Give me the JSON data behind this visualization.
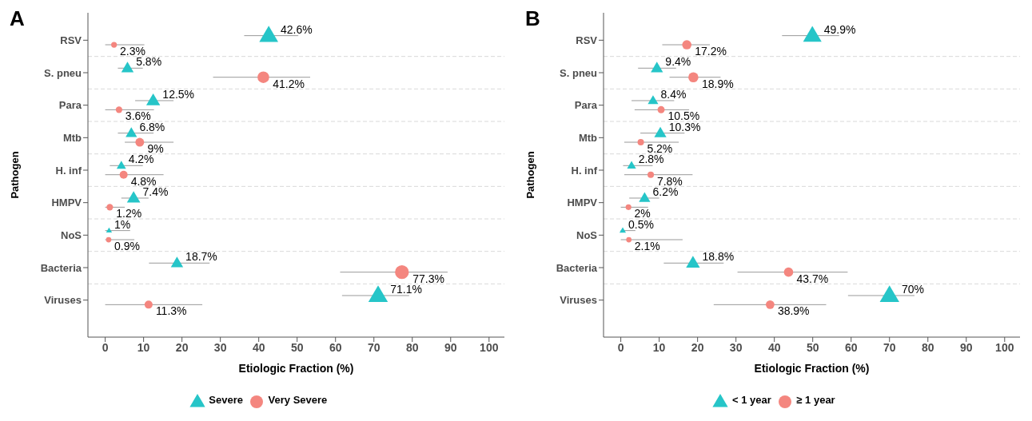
{
  "chart_data": [
    {
      "type": "scatter",
      "orientation": "horizontal",
      "title": "A",
      "xlabel": "Etiologic Fraction (%)",
      "ylabel": "Pathogen",
      "categories": [
        "RSV",
        "S. pneu",
        "Para",
        "Mtb",
        "H. inf",
        "HMPV",
        "NoS",
        "Bacteria",
        "Viruses"
      ],
      "xlim": [
        -4.5,
        104
      ],
      "xticks": [
        0,
        10,
        20,
        30,
        40,
        50,
        60,
        70,
        80,
        90,
        100
      ],
      "grid": "y",
      "legend": "bottom",
      "series": [
        {
          "name": "Severe",
          "color": "#26c5c8",
          "marker": "triangle",
          "values": [
            42.6,
            5.8,
            12.5,
            6.8,
            4.2,
            7.4,
            1,
            18.7,
            71.1
          ],
          "sizes": [
            0.94,
            0.4,
            0.51,
            0.34,
            0.23,
            0.47,
            0.09,
            0.4,
            1
          ],
          "errors": [
            [
              36.2,
              50.3
            ],
            [
              3.3,
              9.8
            ],
            [
              7.8,
              17.8
            ],
            [
              3.3,
              12.6
            ],
            [
              1.2,
              9.8
            ],
            [
              4.2,
              11.3
            ],
            [
              0,
              6.5
            ],
            [
              11.4,
              27.2
            ],
            [
              61.7,
              79.2
            ]
          ],
          "value_labels": [
            "42.6%",
            "5.8%",
            "12.5%",
            "6.8%",
            "4.2%",
            "7.4%",
            "1%",
            "18.7%",
            "71.1%"
          ]
        },
        {
          "name": "Very Severe",
          "color": "#f4867f",
          "marker": "circle",
          "values": [
            2.3,
            41.2,
            3.6,
            9,
            4.8,
            1.2,
            0.9,
            77.3,
            11.3
          ],
          "sizes": [
            0.16,
            0.66,
            0.21,
            0.37,
            0.31,
            0.21,
            0.14,
            0.93,
            0.31
          ],
          "errors": [
            [
              0,
              10.2
            ],
            [
              28.1,
              53.4
            ],
            [
              0,
              12.7
            ],
            [
              5.1,
              17.8
            ],
            [
              0,
              15.2
            ],
            [
              0,
              5.1
            ],
            [
              0,
              7.6
            ],
            [
              61.2,
              89.2
            ],
            [
              0,
              25.3
            ]
          ],
          "value_labels": [
            "2.3%",
            "41.2%",
            "3.6%",
            "9%",
            "4.8%",
            "1.2%",
            "0.9%",
            "77.3%",
            "11.3%"
          ]
        }
      ]
    },
    {
      "type": "scatter",
      "orientation": "horizontal",
      "title": "B",
      "xlabel": "Etiologic Fraction (%)",
      "ylabel": "Pathogen",
      "categories": [
        "RSV",
        "S. pneu",
        "Para",
        "Mtb",
        "H. inf",
        "HMPV",
        "NoS",
        "Bacteria",
        "Viruses"
      ],
      "xlim": [
        -4.5,
        104
      ],
      "xticks": [
        0,
        10,
        20,
        30,
        40,
        50,
        60,
        70,
        80,
        90,
        100
      ],
      "grid": "y",
      "legend": "bottom",
      "series": [
        {
          "name": "< 1 year",
          "color": "#26c5c8",
          "marker": "triangle",
          "values": [
            49.9,
            9.4,
            8.4,
            10.3,
            2.8,
            6.2,
            0.5,
            18.8,
            70
          ],
          "sizes": [
            0.9,
            0.39,
            0.29,
            0.39,
            0.21,
            0.34,
            0.11,
            0.5,
            1
          ],
          "errors": [
            [
              42.0,
              56.9
            ],
            [
              4.5,
              14.4
            ],
            [
              2.8,
              13.9
            ],
            [
              5.1,
              16.6
            ],
            [
              0.6,
              8.3
            ],
            [
              2.2,
              10.0
            ],
            [
              0,
              3.8
            ],
            [
              11.2,
              26.8
            ],
            [
              59.2,
              76.5
            ]
          ],
          "value_labels": [
            "49.9%",
            "9.4%",
            "8.4%",
            "10.3%",
            "2.8%",
            "6.2%",
            "0.5%",
            "18.8%",
            "70%"
          ]
        },
        {
          "name": "≥ 1 year",
          "color": "#f4867f",
          "marker": "circle",
          "values": [
            17.2,
            18.9,
            10.5,
            5.2,
            7.8,
            2,
            2.1,
            43.7,
            38.9
          ],
          "sizes": [
            0.42,
            0.49,
            0.25,
            0.2,
            0.2,
            0.16,
            0.14,
            0.42,
            0.36
          ],
          "errors": [
            [
              10.8,
              23.2
            ],
            [
              12.7,
              26.0
            ],
            [
              3.6,
              17.8
            ],
            [
              0.9,
              15.1
            ],
            [
              0.9,
              18.7
            ],
            [
              0,
              7.1
            ],
            [
              0,
              16.1
            ],
            [
              30.4,
              59.1
            ],
            [
              24.2,
              53.5
            ]
          ],
          "value_labels": [
            "17.2%",
            "18.9%",
            "10.5%",
            "5.2%",
            "7.8%",
            "2%",
            "2.1%",
            "43.7%",
            "38.9%"
          ]
        }
      ]
    }
  ]
}
